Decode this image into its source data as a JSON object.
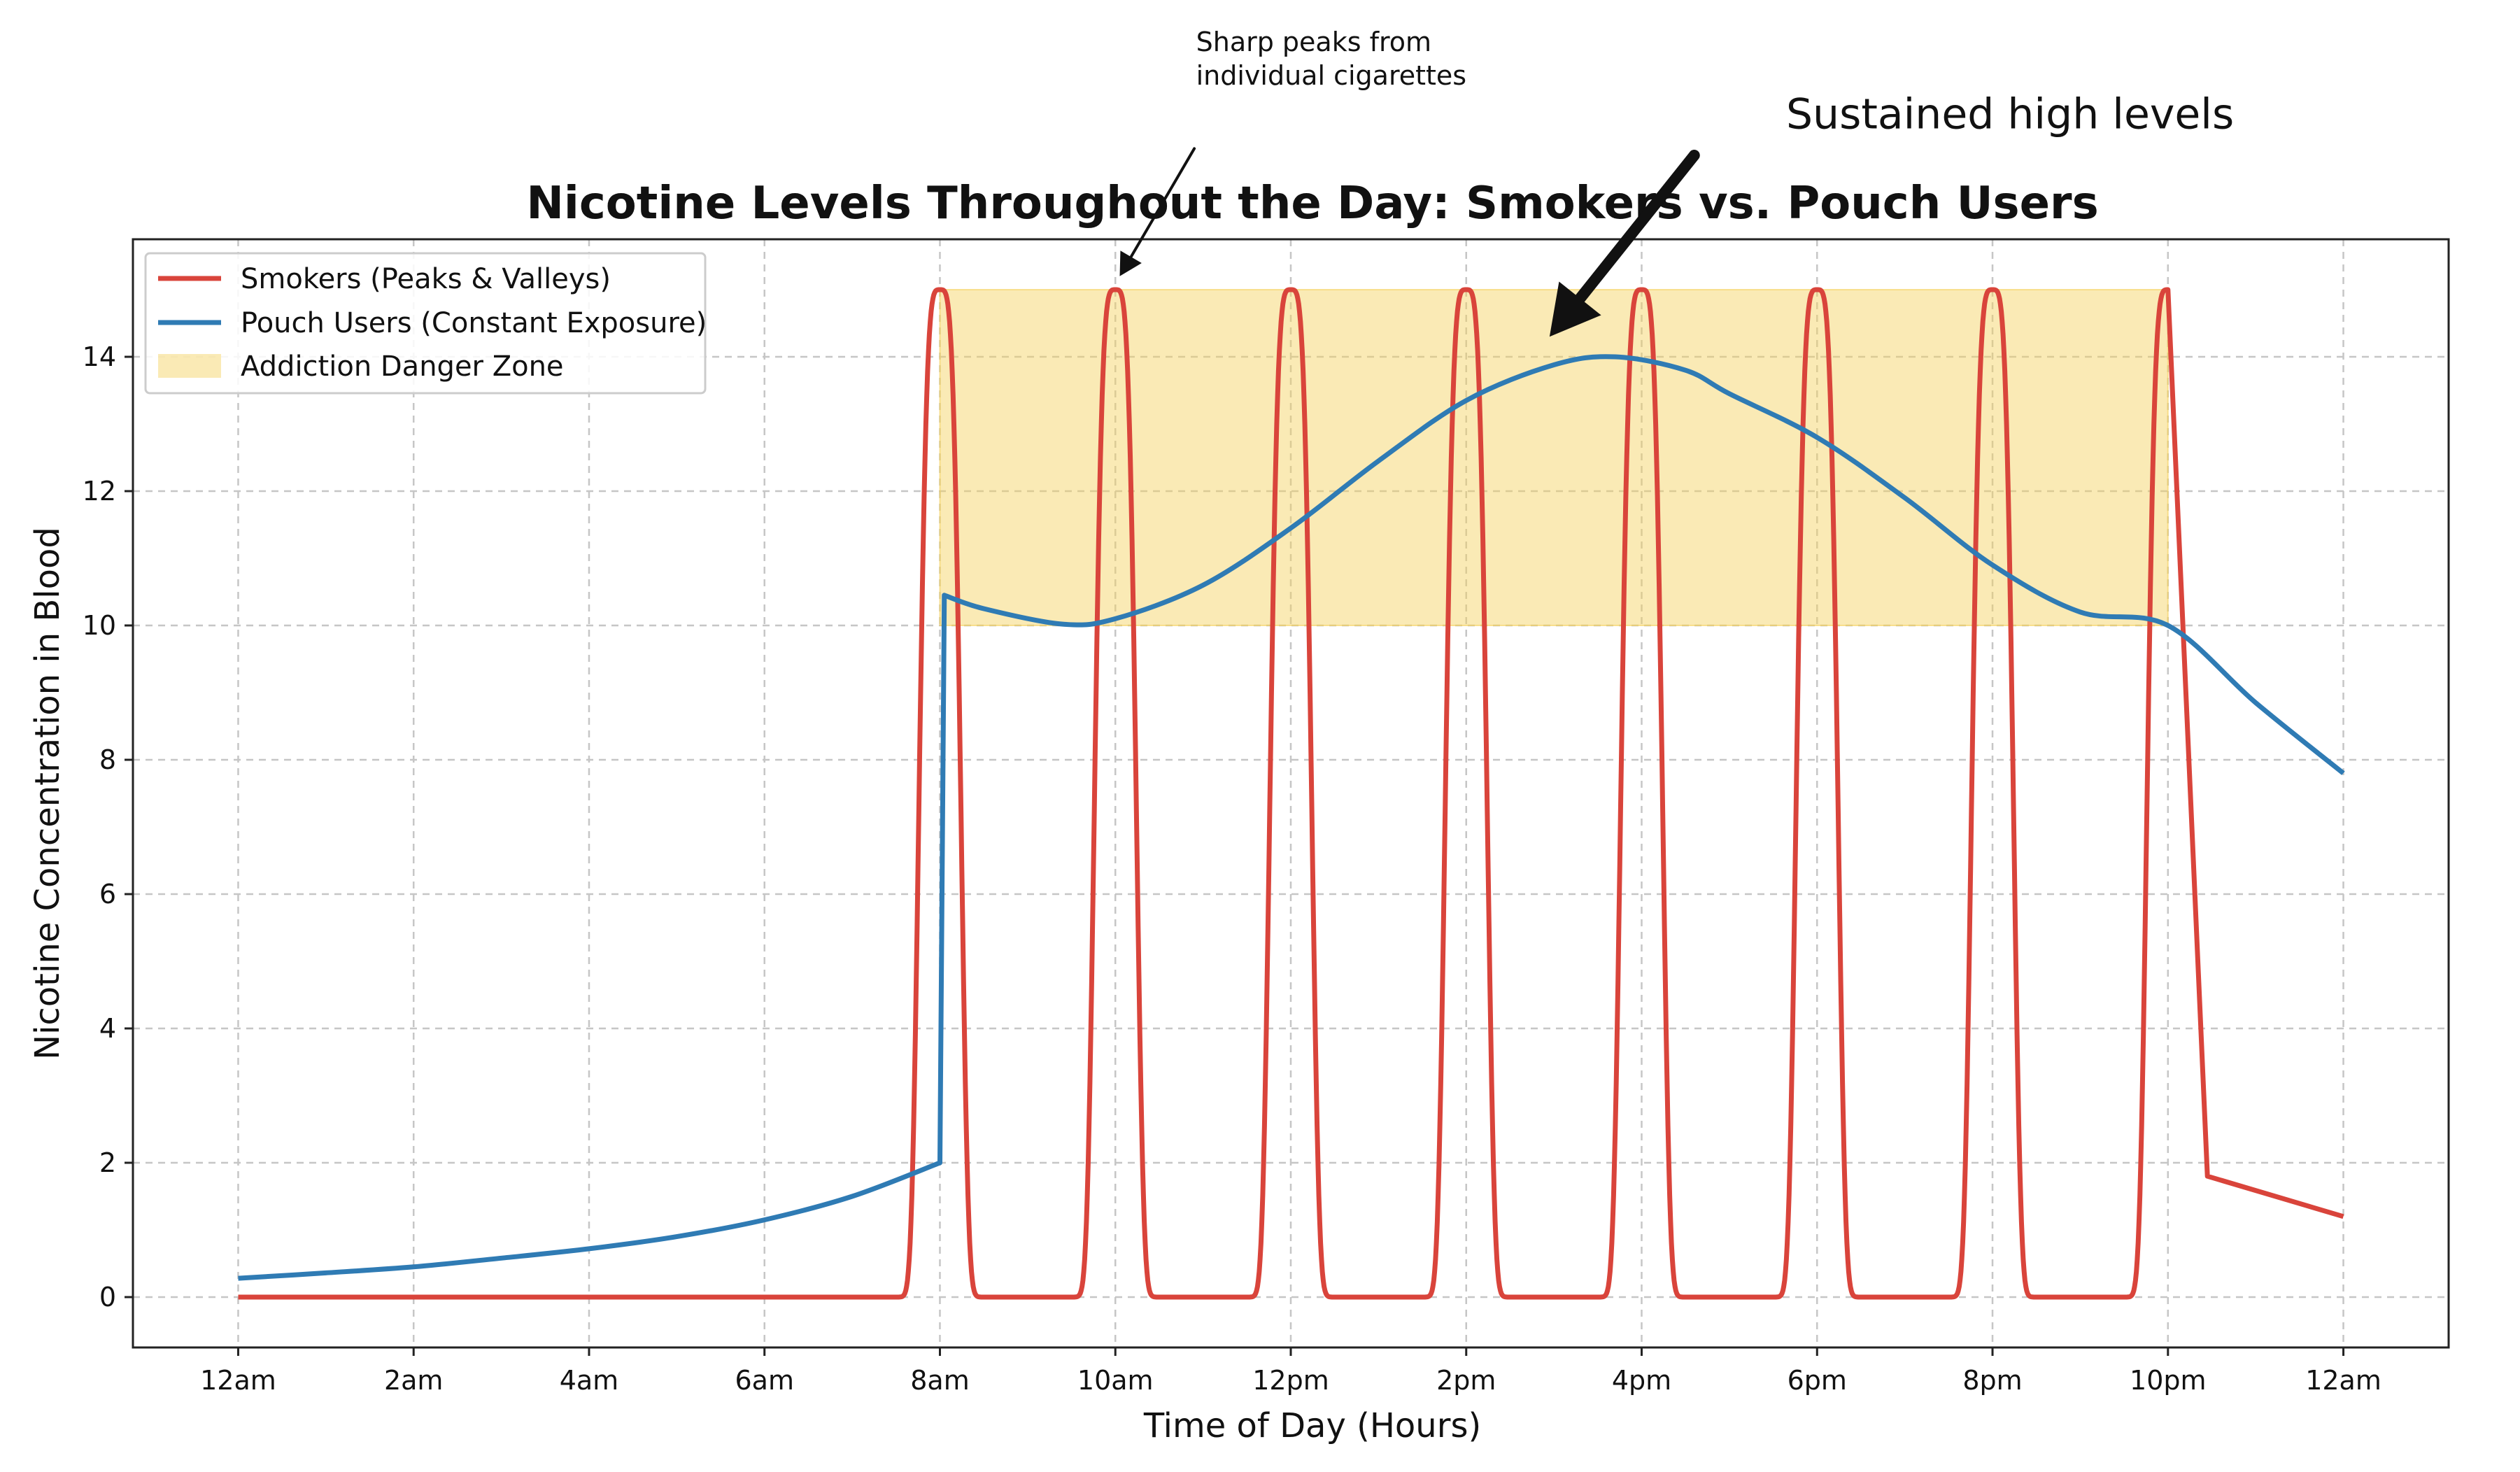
{
  "chart_data": {
    "type": "line",
    "title": "Nicotine Levels Throughout the Day: Smokers vs. Pouch Users",
    "xlabel": "Time of Day (Hours)",
    "ylabel": "Nicotine Concentration in Blood",
    "xlim": [
      -1.2,
      25.2
    ],
    "ylim": [
      -0.75,
      15.75
    ],
    "x_ticks": [
      0,
      2,
      4,
      6,
      8,
      10,
      12,
      14,
      16,
      18,
      20,
      22,
      24
    ],
    "x_tick_labels": [
      "12am",
      "2am",
      "4am",
      "6am",
      "8am",
      "10am",
      "12pm",
      "2pm",
      "4pm",
      "6pm",
      "8pm",
      "10pm",
      "12am"
    ],
    "y_ticks": [
      0,
      2,
      4,
      6,
      8,
      10,
      12,
      14
    ],
    "y_tick_labels": [
      "0",
      "2",
      "4",
      "6",
      "8",
      "10",
      "12",
      "14"
    ],
    "grid": true,
    "legend_position": "top-left",
    "series": [
      {
        "name": "Smokers (Peaks & Valleys)",
        "color": "#d9443b",
        "cigarette_times": [
          8,
          10,
          12,
          14,
          16,
          18,
          20,
          22
        ],
        "peak_value": 15,
        "baseline_value": 0,
        "after_last_cigarette": [
          [
            22.45,
            1.8
          ],
          [
            24,
            1.2
          ]
        ]
      },
      {
        "name": "Pouch Users (Constant Exposure)",
        "color": "#2f7bb4",
        "points": [
          [
            0,
            0.28
          ],
          [
            1,
            0.36
          ],
          [
            2,
            0.45
          ],
          [
            3,
            0.58
          ],
          [
            4,
            0.72
          ],
          [
            5,
            0.9
          ],
          [
            6,
            1.15
          ],
          [
            7,
            1.5
          ],
          [
            8,
            2.0
          ],
          [
            8.05,
            10.45
          ],
          [
            8.5,
            10.25
          ],
          [
            9.4,
            10.02
          ],
          [
            10,
            10.1
          ],
          [
            11,
            10.6
          ],
          [
            12,
            11.45
          ],
          [
            13,
            12.45
          ],
          [
            14,
            13.35
          ],
          [
            15,
            13.88
          ],
          [
            15.7,
            14.0
          ],
          [
            16.5,
            13.8
          ],
          [
            17,
            13.45
          ],
          [
            18,
            12.8
          ],
          [
            19,
            11.9
          ],
          [
            20,
            10.9
          ],
          [
            21,
            10.2
          ],
          [
            22,
            10.0
          ],
          [
            23,
            8.85
          ],
          [
            24,
            7.8
          ]
        ]
      }
    ],
    "bands": [
      {
        "name": "Addiction Danger Zone",
        "x_range": [
          8,
          22
        ],
        "y_range": [
          10,
          15
        ],
        "color": "#f5d15a",
        "opacity": 0.45
      }
    ],
    "annotations": [
      {
        "lines": [
          "Sharp peaks from",
          "individual cigarettes"
        ],
        "text_at": [
          11,
          18.55
        ],
        "arrow_from": [
          10.9,
          17.1
        ],
        "arrow_to": [
          10.05,
          15.2
        ],
        "size": "small"
      },
      {
        "lines": [
          "Sustained high levels"
        ],
        "text_at": [
          20.2,
          17.4
        ],
        "arrow_from": [
          16.6,
          17.0
        ],
        "arrow_to": [
          14.95,
          14.3
        ],
        "size": "large"
      }
    ]
  }
}
